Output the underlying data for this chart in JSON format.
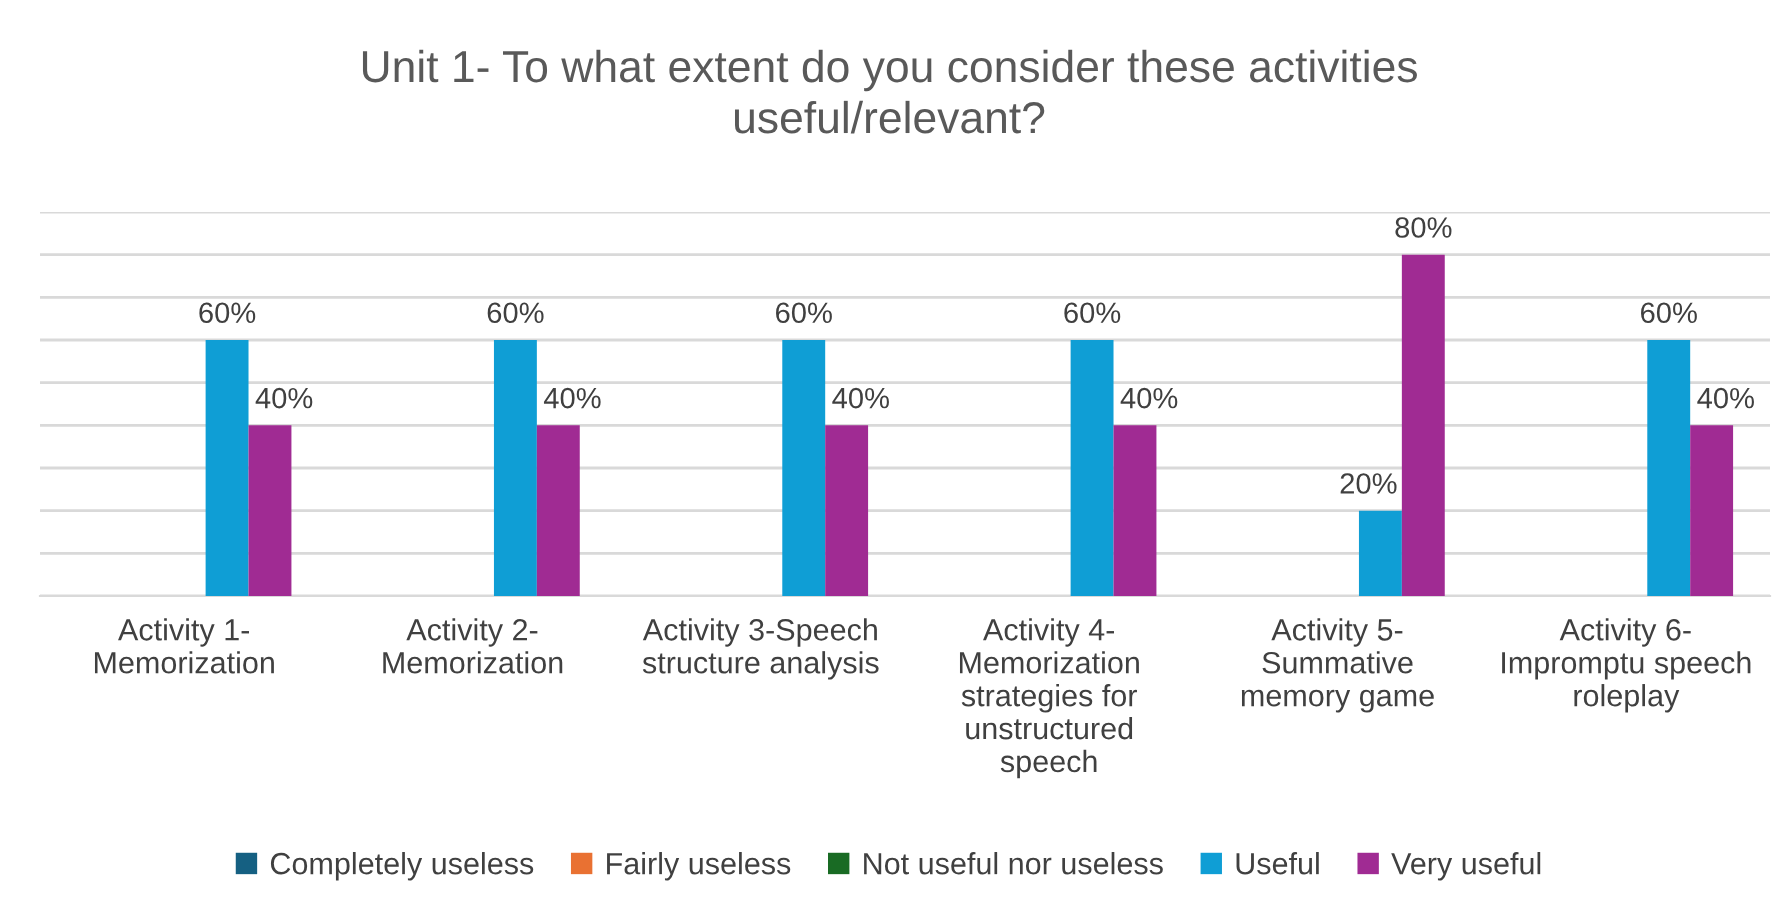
{
  "chart_data": {
    "type": "bar",
    "title": "Unit 1- To what extent do you consider these activities\nuseful/relevant?",
    "categories": [
      "Activity 1-\nMemorization",
      "Activity 2-\nMemorization",
      "Activity 3-Speech\nstructure analysis",
      "Activity 4-\nMemorization\nstrategies for\nunstructured\nspeech",
      "Activity 5-\nSummative\nmemory game",
      "Activity 6-\nImpromptu speech\nroleplay"
    ],
    "series": [
      {
        "name": "Completely useless",
        "color": "#156082",
        "values": [
          null,
          null,
          null,
          null,
          null,
          null
        ]
      },
      {
        "name": "Fairly useless",
        "color": "#e97132",
        "values": [
          null,
          null,
          null,
          null,
          null,
          null
        ]
      },
      {
        "name": "Not useful nor useless",
        "color": "#196b24",
        "values": [
          null,
          null,
          null,
          null,
          null,
          null
        ]
      },
      {
        "name": "Useful",
        "color": "#0f9ed5",
        "values": [
          60,
          60,
          60,
          60,
          20,
          60
        ],
        "value_labels": [
          "60%",
          "60%",
          "60%",
          "60%",
          "20%",
          "60%"
        ]
      },
      {
        "name": "Very useful",
        "color": "#a02b93",
        "values": [
          40,
          40,
          40,
          40,
          80,
          40
        ],
        "value_labels": [
          "40%",
          "40%",
          "40%",
          "40%",
          "80%",
          "40%"
        ]
      }
    ],
    "ylim": [
      0,
      90
    ],
    "yticks": [
      {
        "value": 0,
        "label": null
      },
      {
        "value": 10,
        "label": null
      },
      {
        "value": 20,
        "label": null
      },
      {
        "value": 30,
        "label": null
      },
      {
        "value": 40,
        "label": null
      },
      {
        "value": 50,
        "label": null
      },
      {
        "value": 60,
        "label": null
      },
      {
        "value": 70,
        "label": null
      },
      {
        "value": 80,
        "label": null
      },
      {
        "value": 90,
        "label": null
      }
    ],
    "tick_labels": "x",
    "grid": "y",
    "legend": "bottom"
  }
}
